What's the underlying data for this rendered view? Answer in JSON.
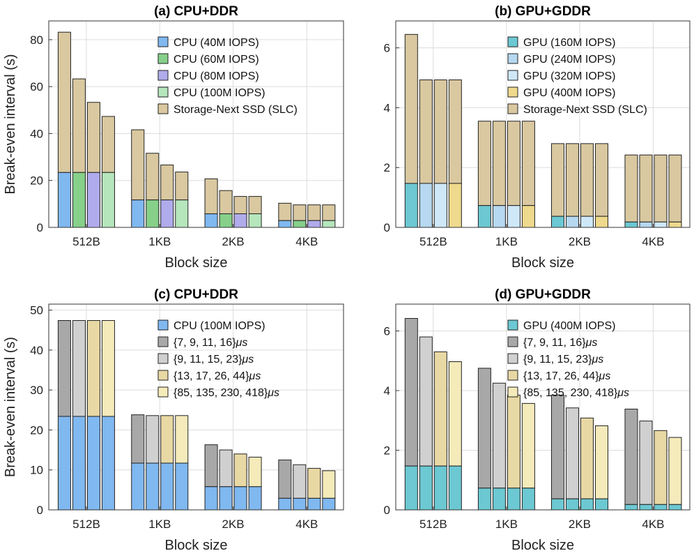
{
  "colors": {
    "cpu40": "#80b8f0",
    "cpu60": "#86d08a",
    "cpu80": "#b0acec",
    "cpu100": "#b6e6bc",
    "ssd": "#d9c8a0",
    "gpu160": "#6cc8d2",
    "gpu240": "#b6d8f0",
    "gpu320": "#cfe8f8",
    "gpu400": "#eed98c",
    "lat1": "#a8a8a8",
    "lat2": "#d0d0d0",
    "lat3": "#e8d8a4",
    "lat4": "#f4eaba"
  },
  "chart_data": [
    {
      "type": "bar",
      "title": "(a) CPU+DDR",
      "xlabel": "Block size",
      "ylabel": "Break-even interval (s)",
      "ylim": [
        0,
        88
      ],
      "yticks": [
        0,
        20,
        40,
        60,
        80
      ],
      "categories": [
        "512B",
        "1KB",
        "2KB",
        "4KB"
      ],
      "grid": true,
      "legend_location": "top-right",
      "series": [
        {
          "name": "CPU (40M IOPS)",
          "color_key": "cpu40",
          "bottom": [
            23.4,
            11.7,
            5.8,
            2.9
          ],
          "total": [
            83.2,
            41.6,
            20.7,
            10.3
          ]
        },
        {
          "name": "CPU (60M IOPS)",
          "color_key": "cpu60",
          "bottom": [
            23.4,
            11.7,
            5.8,
            2.9
          ],
          "total": [
            63.3,
            31.6,
            15.7,
            9.6
          ]
        },
        {
          "name": "CPU (80M IOPS)",
          "color_key": "cpu80",
          "bottom": [
            23.4,
            11.7,
            5.8,
            2.9
          ],
          "total": [
            53.3,
            26.6,
            13.2,
            9.6
          ]
        },
        {
          "name": "CPU (100M IOPS)",
          "color_key": "cpu100",
          "bottom": [
            23.4,
            11.7,
            5.8,
            2.9
          ],
          "total": [
            47.3,
            23.6,
            13.2,
            9.6
          ]
        }
      ],
      "top_series": {
        "name": "Storage-Next SSD (SLC)",
        "color_key": "ssd"
      }
    },
    {
      "type": "bar",
      "title": "(b) GPU+GDDR",
      "xlabel": "Block size",
      "ylabel": "",
      "ylim": [
        0,
        6.9
      ],
      "yticks": [
        0,
        2,
        4,
        6
      ],
      "categories": [
        "512B",
        "1KB",
        "2KB",
        "4KB"
      ],
      "grid": true,
      "legend_location": "top-right",
      "series": [
        {
          "name": "GPU (160M IOPS)",
          "color_key": "gpu160",
          "bottom": [
            1.47,
            0.73,
            0.37,
            0.18
          ],
          "total": [
            6.45,
            3.55,
            2.8,
            2.42
          ]
        },
        {
          "name": "GPU (240M IOPS)",
          "color_key": "gpu240",
          "bottom": [
            1.47,
            0.73,
            0.37,
            0.18
          ],
          "total": [
            4.93,
            3.55,
            2.8,
            2.42
          ]
        },
        {
          "name": "GPU (320M IOPS)",
          "color_key": "gpu320",
          "bottom": [
            1.47,
            0.73,
            0.37,
            0.18
          ],
          "total": [
            4.93,
            3.55,
            2.8,
            2.42
          ]
        },
        {
          "name": "GPU (400M IOPS)",
          "color_key": "gpu400",
          "bottom": [
            1.47,
            0.73,
            0.37,
            0.18
          ],
          "total": [
            4.93,
            3.55,
            2.8,
            2.42
          ]
        }
      ],
      "top_series": {
        "name": "Storage-Next SSD (SLC)",
        "color_key": "ssd"
      }
    },
    {
      "type": "bar",
      "title": "(c) CPU+DDR",
      "xlabel": "Block size",
      "ylabel": "Break-even interval (s)",
      "ylim": [
        0,
        51.5
      ],
      "yticks": [
        0,
        10,
        20,
        30,
        40,
        50
      ],
      "categories": [
        "512B",
        "1KB",
        "2KB",
        "4KB"
      ],
      "grid": true,
      "legend_location": "top-right",
      "base_series": {
        "name": "CPU (100M IOPS)",
        "color_key": "cpu100_c"
      },
      "base_color": "#80b8f0",
      "series": [
        {
          "name": "{7, 9, 11, 16}",
          "unit": "μs",
          "color_key": "lat1",
          "bottom": [
            23.4,
            11.7,
            5.8,
            2.9
          ],
          "total": [
            47.4,
            23.8,
            16.3,
            12.5
          ]
        },
        {
          "name": "{9, 11, 15, 23}",
          "unit": "μs",
          "color_key": "lat2",
          "bottom": [
            23.4,
            11.7,
            5.8,
            2.9
          ],
          "total": [
            47.4,
            23.6,
            15.0,
            11.3
          ]
        },
        {
          "name": "{13, 17, 26, 44}",
          "unit": "μs",
          "color_key": "lat3",
          "bottom": [
            23.4,
            11.7,
            5.8,
            2.9
          ],
          "total": [
            47.4,
            23.6,
            14.0,
            10.4
          ]
        },
        {
          "name": "{85, 135, 230, 418}",
          "unit": "μs",
          "color_key": "lat4",
          "bottom": [
            23.4,
            11.7,
            5.8,
            2.9
          ],
          "total": [
            47.4,
            23.6,
            13.2,
            9.8
          ]
        }
      ]
    },
    {
      "type": "bar",
      "title": "(d) GPU+GDDR",
      "xlabel": "Block size",
      "ylabel": "",
      "ylim": [
        0,
        6.9
      ],
      "yticks": [
        0,
        2,
        4,
        6
      ],
      "categories": [
        "512B",
        "1KB",
        "2KB",
        "4KB"
      ],
      "grid": true,
      "legend_location": "top-right",
      "base_series": {
        "name": "GPU (400M IOPS)",
        "color_key": "gpu160"
      },
      "series": [
        {
          "name": "{7, 9, 11, 16}",
          "unit": "μs",
          "color_key": "lat1",
          "bottom": [
            1.47,
            0.73,
            0.37,
            0.18
          ],
          "total": [
            6.42,
            4.75,
            3.85,
            3.38
          ]
        },
        {
          "name": "{9, 11, 15, 23}",
          "unit": "μs",
          "color_key": "lat2",
          "bottom": [
            1.47,
            0.73,
            0.37,
            0.18
          ],
          "total": [
            5.8,
            4.25,
            3.42,
            2.98
          ]
        },
        {
          "name": "{13, 17, 26, 44}",
          "unit": "μs",
          "color_key": "lat3",
          "bottom": [
            1.47,
            0.73,
            0.37,
            0.18
          ],
          "total": [
            5.3,
            3.85,
            3.08,
            2.66
          ]
        },
        {
          "name": "{85, 135, 230, 418}",
          "unit": "μs",
          "color_key": "lat4",
          "bottom": [
            1.47,
            0.73,
            0.37,
            0.18
          ],
          "total": [
            4.97,
            3.57,
            2.82,
            2.43
          ]
        }
      ]
    }
  ]
}
